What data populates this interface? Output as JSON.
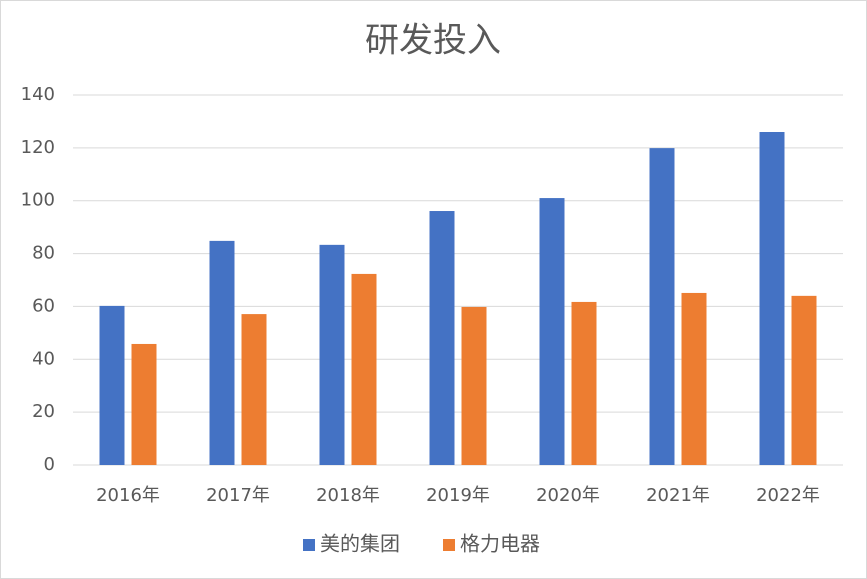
{
  "chart_data": {
    "type": "bar",
    "title": "研发投入",
    "categories": [
      "2016年",
      "2017年",
      "2018年",
      "2019年",
      "2020年",
      "2021年",
      "2022年"
    ],
    "series": [
      {
        "name": "美的集团",
        "color": "#4472c4",
        "values": [
          60.2,
          84.8,
          83.3,
          96.1,
          101,
          119.9,
          126
        ]
      },
      {
        "name": "格力电器",
        "color": "#ed7d31",
        "values": [
          45.8,
          57.1,
          72.3,
          59.8,
          61.7,
          65.1,
          64
        ]
      }
    ],
    "ylim": [
      0,
      140
    ],
    "yticks": [
      0,
      20,
      40,
      60,
      80,
      100,
      120,
      140
    ],
    "grid": true,
    "legend": "bottom"
  }
}
